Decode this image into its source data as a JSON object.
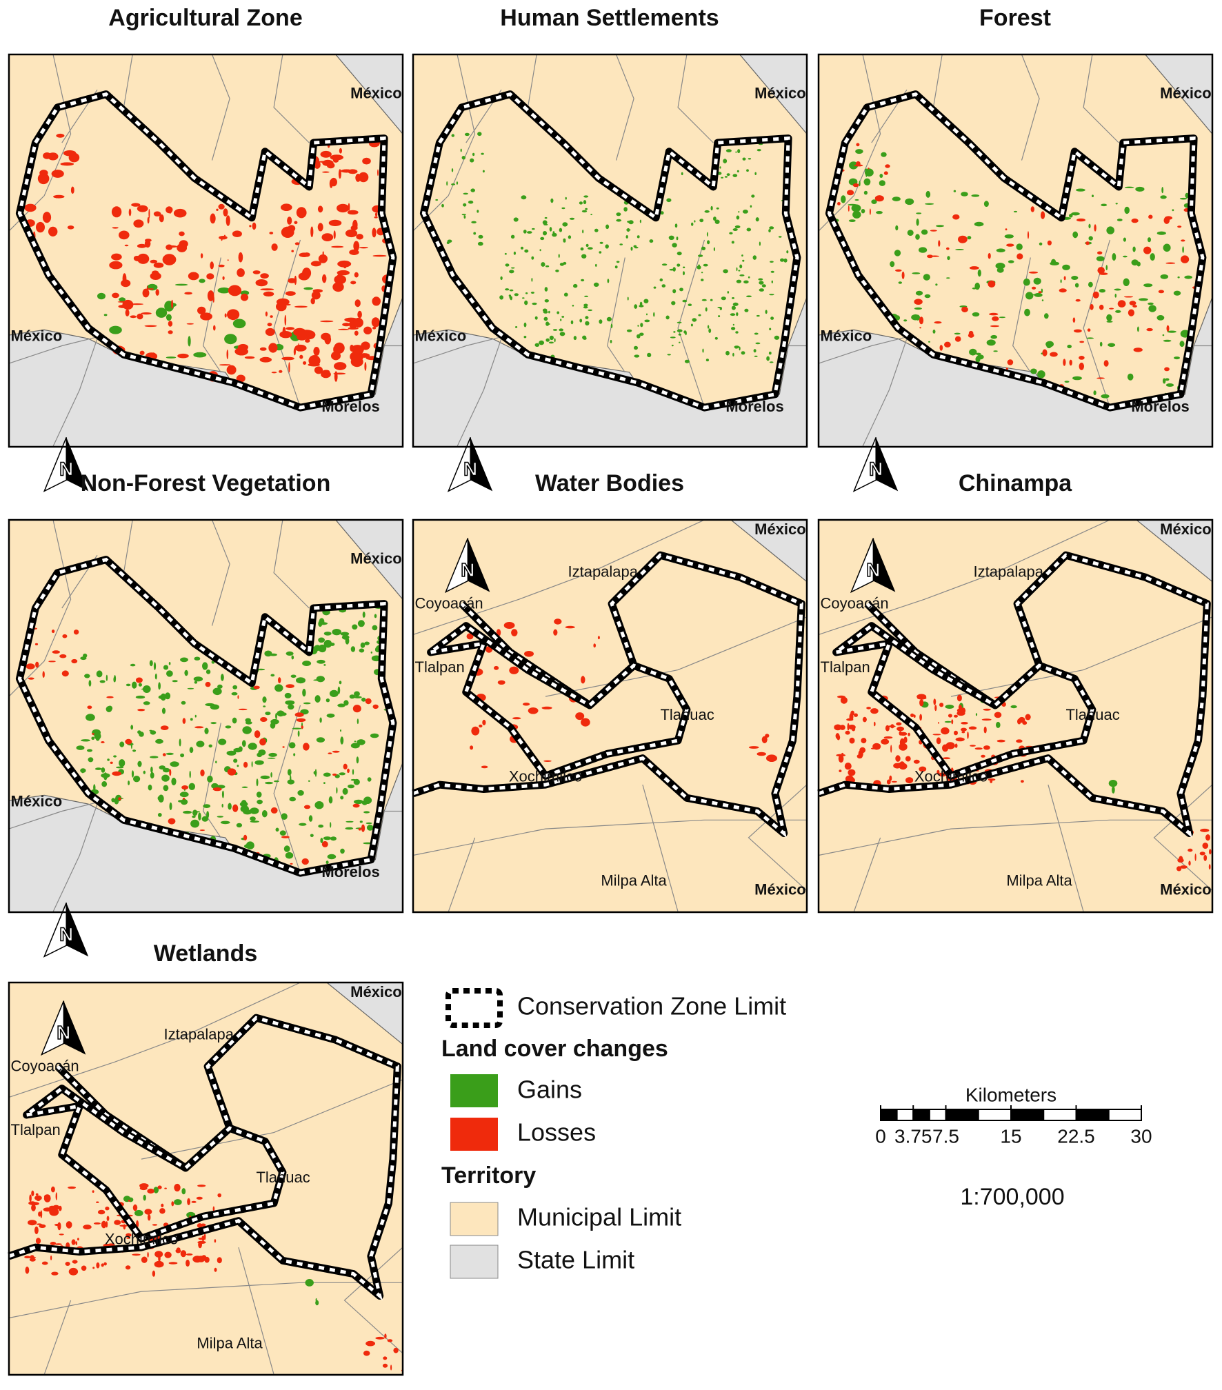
{
  "panels": [
    {
      "title": "Agricultural Zone",
      "labels": [
        "México",
        "México",
        "Morelos"
      ]
    },
    {
      "title": "Human Settlements",
      "labels": [
        "México",
        "México",
        "Morelos"
      ]
    },
    {
      "title": "Forest",
      "labels": [
        "México",
        "México",
        "Morelos"
      ]
    },
    {
      "title": "Non-Forest Vegetation",
      "labels": [
        "México",
        "México",
        "Morelos"
      ]
    },
    {
      "title": "Water Bodies",
      "labels": [
        "México",
        "Iztapalapa",
        "Coyoacán",
        "Tlalpan",
        "Tlahuac",
        "Xochimilco",
        "Milpa Alta",
        "México"
      ]
    },
    {
      "title": "Chinampa",
      "labels": [
        "México",
        "Iztapalapa",
        "Coyoacán",
        "Tlalpan",
        "Tlahuac",
        "Xochimilco",
        "Milpa Alta",
        "México"
      ]
    },
    {
      "title": "Wetlands",
      "labels": [
        "México",
        "Iztapalapa",
        "Coyoacán",
        "Tlalpan",
        "Tlahuac",
        "Xochimilco",
        "Milpa Alta"
      ]
    }
  ],
  "north_symbol": "N",
  "legend": {
    "boundary": "Conservation Zone Limit",
    "changes_heading": "Land cover changes",
    "gains": "Gains",
    "losses": "Losses",
    "territory_heading": "Territory",
    "municipal": "Municipal Limit",
    "state": "State Limit"
  },
  "scale_bar": {
    "unit": "Kilometers",
    "ticks": [
      0,
      3.75,
      7.5,
      15,
      22.5,
      30
    ]
  },
  "scale": "1:700,000"
}
